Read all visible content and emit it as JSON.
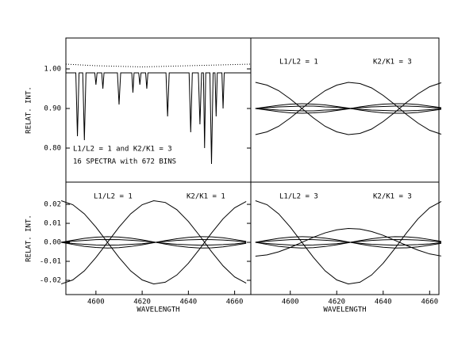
{
  "chart_data": [
    {
      "type": "line",
      "ylabel": "RELAT. INT.",
      "ylim": [
        0.714,
        1.078
      ],
      "yticks": [
        {
          "value": 0.8,
          "label": "0.80"
        },
        {
          "value": 0.9,
          "label": "0.90"
        },
        {
          "value": 1.0,
          "label": "1.00"
        }
      ],
      "xlim": [
        4587,
        4667
      ],
      "annotations": [
        "L1/L2 = 1 and K2/K1 = 3",
        "16 SPECTRA with 672 BINS"
      ],
      "series": [
        {
          "color": "#000",
          "dash": "solid",
          "x": [
            4587,
            4591.3,
            4592,
            4592.7,
            4594.3,
            4595,
            4595.7,
            4599.5,
            4600,
            4600.5,
            4602.5,
            4603,
            4603.5,
            4609.3,
            4610,
            4610.7,
            4615.5,
            4616,
            4616.5,
            4618.5,
            4619,
            4619.5,
            4621.5,
            4622,
            4622.5,
            4630.3,
            4631,
            4631.7,
            4640.3,
            4641,
            4641.7,
            4644.3,
            4645,
            4645.7,
            4646.5,
            4647,
            4647.5,
            4649.3,
            4650,
            4650.7,
            4651.5,
            4652,
            4652.5,
            4654.5,
            4655,
            4655.5,
            4667
          ],
          "values": [
            0.99,
            0.99,
            0.83,
            0.99,
            0.99,
            0.82,
            0.99,
            0.99,
            0.96,
            0.99,
            0.99,
            0.95,
            0.99,
            0.99,
            0.91,
            0.99,
            0.99,
            0.94,
            0.99,
            0.99,
            0.96,
            0.99,
            0.99,
            0.95,
            0.99,
            0.99,
            0.88,
            0.99,
            0.99,
            0.84,
            0.99,
            0.99,
            0.86,
            0.99,
            0.99,
            0.8,
            0.99,
            0.99,
            0.76,
            0.99,
            0.99,
            0.88,
            0.99,
            0.99,
            0.9,
            0.99,
            0.99
          ]
        },
        {
          "color": "#000",
          "dash": "dotted",
          "x": [
            4587,
            4600,
            4620,
            4640,
            4667
          ],
          "values": [
            1.012,
            1.008,
            1.005,
            1.008,
            1.012
          ]
        }
      ]
    },
    {
      "type": "line",
      "ylim": [
        0.714,
        1.078
      ],
      "xlim": [
        4583,
        4664
      ],
      "annotations": [
        "L1/L2 = 1",
        "K2/K1 = 3"
      ],
      "x": [
        4585,
        4590,
        4595,
        4600,
        4605,
        4610,
        4615,
        4620,
        4625,
        4630,
        4635,
        4640,
        4645,
        4650,
        4655,
        4660,
        4665
      ],
      "series": [
        {
          "color": "#000",
          "values": [
            0.966,
            0.959,
            0.945,
            0.924,
            0.9,
            0.876,
            0.855,
            0.841,
            0.834,
            0.837,
            0.848,
            0.867,
            0.89,
            0.915,
            0.937,
            0.955,
            0.965
          ]
        },
        {
          "color": "#000",
          "values": [
            0.834,
            0.841,
            0.855,
            0.876,
            0.9,
            0.924,
            0.945,
            0.959,
            0.966,
            0.963,
            0.952,
            0.933,
            0.91,
            0.885,
            0.863,
            0.845,
            0.835
          ]
        },
        {
          "color": "#000",
          "values": [
            0.9,
            0.904,
            0.908,
            0.911,
            0.912,
            0.911,
            0.909,
            0.905,
            0.901,
            0.896,
            0.892,
            0.889,
            0.888,
            0.888,
            0.89,
            0.894,
            0.898
          ]
        },
        {
          "color": "#000",
          "values": [
            0.9,
            0.896,
            0.892,
            0.889,
            0.888,
            0.889,
            0.891,
            0.895,
            0.899,
            0.904,
            0.908,
            0.911,
            0.912,
            0.912,
            0.91,
            0.906,
            0.902
          ]
        },
        {
          "color": "#000",
          "values": [
            0.9,
            0.902,
            0.904,
            0.905,
            0.906,
            0.906,
            0.904,
            0.903,
            0.9,
            0.898,
            0.896,
            0.895,
            0.894,
            0.894,
            0.895,
            0.897,
            0.899
          ]
        },
        {
          "color": "#000",
          "values": [
            0.9,
            0.898,
            0.896,
            0.895,
            0.894,
            0.894,
            0.896,
            0.897,
            0.9,
            0.902,
            0.904,
            0.905,
            0.906,
            0.906,
            0.905,
            0.903,
            0.901
          ]
        }
      ]
    },
    {
      "type": "line",
      "ylabel": "RELAT. INT.",
      "xlabel": "WAVELENGTH",
      "ylim": [
        -0.0275,
        0.0317
      ],
      "xlim": [
        4587,
        4667
      ],
      "yticks": [
        0.02,
        0.01,
        {
          "value": 0,
          "label": "0.00"
        },
        -0.01,
        -0.02
      ],
      "xticks": [
        4600,
        4620,
        4640,
        4660
      ],
      "annotations": [
        "L1/L2 = 1",
        "K2/K1 = 1"
      ],
      "x": [
        4585,
        4590,
        4595,
        4600,
        4605,
        4610,
        4615,
        4620,
        4625,
        4630,
        4635,
        4640,
        4645,
        4650,
        4655,
        4660,
        4665
      ],
      "series": [
        {
          "color": "#000",
          "values": [
            0.0219,
            0.0198,
            0.015,
            0.008,
            0.0,
            -0.008,
            -0.015,
            -0.0198,
            -0.0219,
            -0.021,
            -0.0172,
            -0.011,
            -0.0033,
            0.0049,
            0.0124,
            0.0182,
            0.0215
          ]
        },
        {
          "color": "#000",
          "values": [
            -0.0219,
            -0.0198,
            -0.015,
            -0.008,
            0.0,
            0.008,
            0.015,
            0.0198,
            0.0219,
            0.021,
            0.0172,
            0.011,
            0.0033,
            -0.0049,
            -0.0124,
            -0.0182,
            -0.0215
          ]
        },
        {
          "color": "#000",
          "values": [
            0,
            0.0011,
            0.0021,
            0.0027,
            0.003,
            0.0028,
            0.0022,
            0.0013,
            0.0002,
            -0.0009,
            -0.0019,
            -0.0026,
            -0.003,
            -0.0029,
            -0.0024,
            -0.0015,
            -0.0005
          ]
        },
        {
          "color": "#000",
          "values": [
            0,
            -0.0011,
            -0.0021,
            -0.0027,
            -0.003,
            -0.0028,
            -0.0022,
            -0.0013,
            -0.0002,
            0.0009,
            0.0019,
            0.0026,
            0.003,
            0.0029,
            0.0024,
            0.0015,
            0.0005
          ]
        },
        {
          "color": "#000",
          "values": [
            0,
            0.0006,
            0.001,
            0.0014,
            0.0015,
            0.0014,
            0.0011,
            0.0007,
            0.0001,
            -0.0005,
            -0.001,
            -0.0013,
            -0.0015,
            -0.0014,
            -0.0012,
            -0.0008,
            -0.0002
          ]
        },
        {
          "color": "#000",
          "values": [
            0,
            -0.0006,
            -0.001,
            -0.0014,
            -0.0015,
            -0.0014,
            -0.0011,
            -0.0007,
            -0.0001,
            0.0005,
            0.001,
            0.0013,
            0.0015,
            0.0014,
            0.0012,
            0.0008,
            0.0002
          ]
        }
      ]
    },
    {
      "type": "line",
      "xlabel": "WAVELENGTH",
      "ylim": [
        -0.0275,
        0.0317
      ],
      "xlim": [
        4583,
        4664
      ],
      "xticks": [
        4600,
        4620,
        4640,
        4660
      ],
      "annotations": [
        "L1/L2 = 3",
        "K2/K1 = 3"
      ],
      "x": [
        4585,
        4590,
        4595,
        4600,
        4605,
        4610,
        4615,
        4620,
        4625,
        4630,
        4635,
        4640,
        4645,
        4650,
        4655,
        4660,
        4665
      ],
      "series": [
        {
          "color": "#000",
          "values": [
            0.0219,
            0.0198,
            0.015,
            0.008,
            0.0,
            -0.008,
            -0.015,
            -0.0198,
            -0.0219,
            -0.021,
            -0.0172,
            -0.011,
            -0.0033,
            0.0049,
            0.0124,
            0.0182,
            0.0215
          ]
        },
        {
          "color": "#000",
          "values": [
            -0.0073,
            -0.0066,
            -0.005,
            -0.0027,
            0.0,
            0.0027,
            0.005,
            0.0066,
            0.0073,
            0.007,
            0.0057,
            0.0037,
            0.0011,
            -0.0016,
            -0.0041,
            -0.0061,
            -0.0072
          ]
        },
        {
          "color": "#000",
          "values": [
            0,
            0.0011,
            0.0021,
            0.0027,
            0.003,
            0.0028,
            0.0022,
            0.0013,
            0.0002,
            -0.0009,
            -0.0019,
            -0.0026,
            -0.003,
            -0.0029,
            -0.0024,
            -0.0015,
            -0.0005
          ]
        },
        {
          "color": "#000",
          "values": [
            0,
            -0.0011,
            -0.0021,
            -0.0027,
            -0.003,
            -0.0028,
            -0.0022,
            -0.0013,
            -0.0002,
            0.0009,
            0.0019,
            0.0026,
            0.003,
            0.0029,
            0.0024,
            0.0015,
            0.0005
          ]
        },
        {
          "color": "#000",
          "values": [
            0,
            0.0006,
            0.001,
            0.0014,
            0.0015,
            0.0014,
            0.0011,
            0.0007,
            0.0001,
            -0.0005,
            -0.001,
            -0.0013,
            -0.0015,
            -0.0014,
            -0.0012,
            -0.0008,
            -0.0002
          ]
        },
        {
          "color": "#000",
          "values": [
            0,
            -0.0006,
            -0.001,
            -0.0014,
            -0.0015,
            -0.0014,
            -0.0011,
            -0.0007,
            -0.0001,
            0.0005,
            0.001,
            0.0013,
            0.0015,
            0.0014,
            0.0012,
            0.0008,
            0.0002
          ]
        }
      ]
    }
  ]
}
